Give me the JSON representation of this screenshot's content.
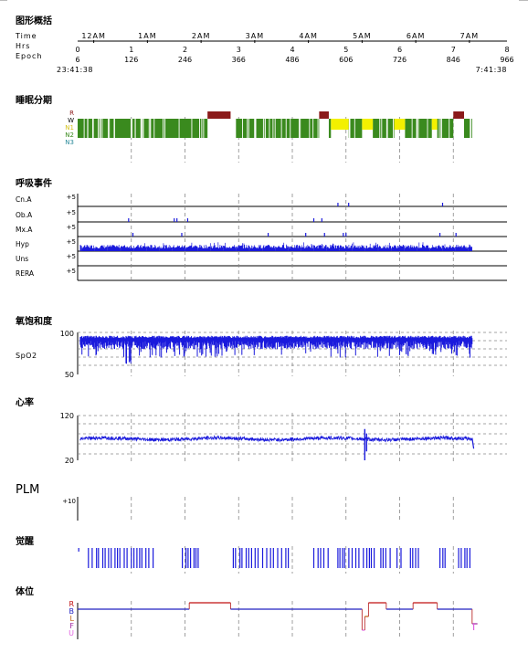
{
  "sections": {
    "overview": "图形概括",
    "sleep_stage": "睡眠分期",
    "respiratory": "呼吸事件",
    "spo2": "氧饱和度",
    "heart_rate": "心率",
    "plm": "PLM",
    "arousal": "觉醒",
    "position": "体位"
  },
  "timeline": {
    "row_labels": [
      "Time",
      "Hrs",
      "Epoch"
    ],
    "clock_ticks": [
      "12AM",
      "1AM",
      "2AM",
      "3AM",
      "4AM",
      "5AM",
      "6AM",
      "7AM"
    ],
    "hour_ticks": [
      "0",
      "1",
      "2",
      "3",
      "4",
      "5",
      "6",
      "7",
      "8"
    ],
    "epoch_ticks": [
      "6",
      "126",
      "246",
      "366",
      "486",
      "606",
      "726",
      "846",
      "966"
    ],
    "start_time": "23:41:38",
    "end_time": "7:41:38"
  },
  "stage_labels": [
    {
      "label": "R",
      "color": "#8b1a1a"
    },
    {
      "label": "W",
      "color": "#000000"
    },
    {
      "label": "N1",
      "color": "#d4c21a"
    },
    {
      "label": "N2",
      "color": "#3a8a1e"
    },
    {
      "label": "N3",
      "color": "#2a8a9a"
    }
  ],
  "respiratory_rows": [
    {
      "label": "Cn.A",
      "scale": "+5"
    },
    {
      "label": "Ob.A",
      "scale": "+5"
    },
    {
      "label": "Mx.A",
      "scale": "+5"
    },
    {
      "label": "Hyp",
      "scale": "+5"
    },
    {
      "label": "Uns",
      "scale": "+5"
    },
    {
      "label": "RERA",
      "scale": "+5"
    }
  ],
  "spo2_axis": {
    "label": "SpO2",
    "max": "100",
    "min": "50"
  },
  "hr_axis": {
    "max": "120",
    "min": "20"
  },
  "plm_axis": {
    "scale": "+10"
  },
  "position_labels": [
    {
      "label": "R",
      "color": "#c01010"
    },
    {
      "label": "B",
      "color": "#2020c0"
    },
    {
      "label": "L",
      "color": "#c06010"
    },
    {
      "label": "F",
      "color": "#a020a0"
    },
    {
      "label": "U",
      "color": "#e060e0"
    }
  ],
  "colors": {
    "trace": "#1a1adc",
    "rem": "#8b1a1a",
    "n1": "#f3f000",
    "n2": "#3a8a1e",
    "pos_right": "#c01010",
    "pos_back": "#2020c0",
    "grid": "#888888"
  },
  "chart_data": {
    "type": "line",
    "x_unit": "hours since recording start",
    "xlim": [
      0,
      8
    ],
    "sleep_stages": {
      "rem_segments": [
        [
          2.42,
          2.85
        ],
        [
          4.5,
          4.68
        ],
        [
          7.0,
          7.2
        ]
      ],
      "n1_segments": [
        [
          4.72,
          5.05
        ],
        [
          5.3,
          5.5
        ],
        [
          5.9,
          6.1
        ],
        [
          6.6,
          6.7
        ]
      ],
      "n2_segments": [
        [
          0.0,
          2.42
        ],
        [
          2.95,
          4.5
        ],
        [
          4.68,
          4.72
        ],
        [
          5.05,
          5.3
        ],
        [
          5.5,
          5.9
        ],
        [
          6.1,
          6.6
        ],
        [
          6.7,
          7.0
        ],
        [
          7.2,
          7.35
        ]
      ]
    },
    "respiratory_events": {
      "Cn.A": [
        4.85,
        5.05,
        6.8
      ],
      "Ob.A": [
        0.95,
        1.8,
        1.85,
        2.05,
        4.4,
        4.55
      ],
      "Mx.A": [
        1.03,
        1.94,
        3.55,
        4.25,
        4.6,
        4.95,
        5.0,
        6.75,
        7.05
      ],
      "Hyp": "frequent throughout, 0.05–7.35",
      "Uns": [],
      "RERA": []
    },
    "spo2": {
      "ylim": [
        50,
        100
      ],
      "typical_range": [
        78,
        96
      ],
      "nadir": 62,
      "span": [
        0.05,
        7.35
      ]
    },
    "heart_rate": {
      "ylim": [
        20,
        120
      ],
      "baseline": 68,
      "spike_max": 90,
      "spike_min": 20,
      "spike_time": 5.35,
      "end_drop": 46
    },
    "plm": {
      "ylim": [
        0,
        10
      ],
      "events": []
    },
    "position": {
      "segments": [
        {
          "from": 0.0,
          "to": 2.08,
          "pos": "B"
        },
        {
          "from": 2.08,
          "to": 2.85,
          "pos": "R"
        },
        {
          "from": 2.85,
          "to": 5.3,
          "pos": "B"
        },
        {
          "from": 5.3,
          "to": 5.35,
          "pos": "U"
        },
        {
          "from": 5.35,
          "to": 5.42,
          "pos": "L"
        },
        {
          "from": 5.42,
          "to": 5.75,
          "pos": "R"
        },
        {
          "from": 5.75,
          "to": 6.25,
          "pos": "B"
        },
        {
          "from": 6.25,
          "to": 6.7,
          "pos": "R"
        },
        {
          "from": 6.7,
          "to": 7.35,
          "pos": "B"
        },
        {
          "from": 7.35,
          "to": 7.45,
          "pos": "F"
        }
      ]
    }
  }
}
